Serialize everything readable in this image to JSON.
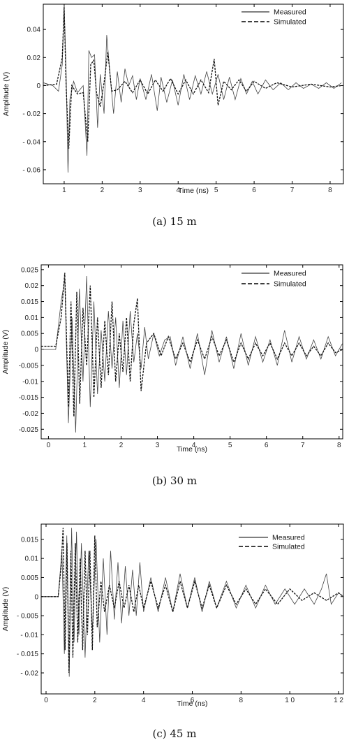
{
  "chart_data": [
    {
      "type": "line",
      "caption": "(a) 15 m",
      "xlabel": "Time (ns)",
      "ylabel": "Amplitude (V)",
      "xlim": [
        0.45,
        8.35
      ],
      "ylim": [
        -0.07,
        0.058
      ],
      "xticks": [
        1,
        2,
        3,
        4,
        5,
        6,
        7,
        8
      ],
      "xtick_labels": [
        "1",
        "2",
        "3",
        "4",
        "5",
        "6",
        "7",
        "8"
      ],
      "yticks": [
        -0.06,
        -0.04,
        -0.02,
        0,
        0.02,
        0.04
      ],
      "ytick_labels": [
        "- 0.06",
        "- 0.04",
        "- 0.02",
        "0",
        "0.02",
        "0.04"
      ],
      "legend_position": "top-right",
      "grid": false,
      "series": [
        {
          "name": "Measured",
          "style": "solid",
          "x": [
            0.45,
            0.7,
            0.85,
            0.95,
            1.0,
            1.05,
            1.1,
            1.15,
            1.25,
            1.35,
            1.5,
            1.6,
            1.65,
            1.72,
            1.8,
            1.88,
            1.95,
            2.05,
            2.12,
            2.2,
            2.3,
            2.4,
            2.5,
            2.6,
            2.7,
            2.8,
            2.9,
            3.0,
            3.15,
            3.3,
            3.45,
            3.55,
            3.7,
            3.85,
            4.0,
            4.15,
            4.3,
            4.45,
            4.6,
            4.75,
            4.9,
            5.05,
            5.2,
            5.35,
            5.5,
            5.65,
            5.8,
            5.95,
            6.1,
            6.3,
            6.5,
            6.7,
            6.9,
            7.1,
            7.3,
            7.5,
            7.7,
            7.9,
            8.1,
            8.3
          ],
          "y": [
            0.002,
            0.0,
            -0.004,
            0.015,
            0.057,
            0.01,
            -0.062,
            -0.01,
            0.003,
            -0.005,
            0.0,
            -0.05,
            0.025,
            0.02,
            0.022,
            -0.03,
            0.008,
            -0.02,
            0.036,
            0.01,
            -0.02,
            0.01,
            -0.012,
            0.012,
            0.0,
            0.007,
            -0.01,
            0.005,
            -0.01,
            0.008,
            -0.018,
            0.006,
            -0.012,
            0.004,
            -0.014,
            0.008,
            -0.01,
            0.007,
            -0.006,
            0.01,
            -0.006,
            0.008,
            -0.01,
            0.006,
            -0.01,
            0.005,
            -0.006,
            0.003,
            -0.006,
            0.004,
            -0.003,
            0.002,
            -0.003,
            0.002,
            -0.002,
            0.001,
            -0.002,
            0.002,
            -0.002,
            0.002
          ]
        },
        {
          "name": "Simulated",
          "style": "dashed",
          "x": [
            0.45,
            0.8,
            0.95,
            1.0,
            1.05,
            1.12,
            1.2,
            1.35,
            1.5,
            1.62,
            1.7,
            1.78,
            1.85,
            1.95,
            2.05,
            2.15,
            2.25,
            2.4,
            2.6,
            2.8,
            3.0,
            3.2,
            3.4,
            3.6,
            3.8,
            4.0,
            4.2,
            4.4,
            4.6,
            4.8,
            4.95,
            5.05,
            5.2,
            5.4,
            5.6,
            5.8,
            6.0,
            6.3,
            6.6,
            7.0,
            7.5,
            8.0,
            8.3
          ],
          "y": [
            0.0,
            0.001,
            0.02,
            0.056,
            0.0,
            -0.045,
            0.0,
            -0.006,
            -0.005,
            -0.04,
            0.015,
            0.018,
            -0.005,
            -0.015,
            0.002,
            0.024,
            -0.004,
            -0.003,
            0.003,
            -0.005,
            0.004,
            -0.006,
            0.004,
            -0.004,
            0.005,
            -0.006,
            0.004,
            -0.006,
            0.004,
            -0.005,
            0.019,
            -0.014,
            0.003,
            -0.003,
            0.004,
            -0.004,
            0.003,
            -0.002,
            0.002,
            -0.001,
            0.001,
            -0.001,
            0.0
          ]
        }
      ]
    },
    {
      "type": "line",
      "caption": "(b) 30 m",
      "xlabel": "Time (ns)",
      "ylabel": "Amplitude (V)",
      "xlim": [
        -0.2,
        8.1
      ],
      "ylim": [
        -0.028,
        0.0265
      ],
      "xticks": [
        0,
        1,
        2,
        3,
        4,
        5,
        6,
        7,
        8
      ],
      "xtick_labels": [
        "0",
        "1",
        "2",
        "3",
        "4",
        "5",
        "6",
        "7",
        "8"
      ],
      "yticks": [
        -0.025,
        -0.02,
        -0.015,
        -0.01,
        -0.005,
        0,
        0.005,
        0.01,
        0.015,
        0.02,
        0.025
      ],
      "ytick_labels": [
        "-0.025",
        "-0.02",
        "-0.015",
        "-0.01",
        "-0.005",
        "0",
        "0.005",
        "0.01",
        "0.015",
        "0.02",
        "0.025"
      ],
      "legend_position": "top-right",
      "grid": false,
      "series": [
        {
          "name": "Measured",
          "style": "solid",
          "x": [
            -0.2,
            0.2,
            0.35,
            0.45,
            0.55,
            0.65,
            0.75,
            0.85,
            0.95,
            1.05,
            1.15,
            1.25,
            1.35,
            1.45,
            1.55,
            1.65,
            1.75,
            1.85,
            1.95,
            2.05,
            2.15,
            2.25,
            2.35,
            2.45,
            2.55,
            2.65,
            2.75,
            2.9,
            3.05,
            3.2,
            3.35,
            3.5,
            3.7,
            3.9,
            4.1,
            4.3,
            4.5,
            4.7,
            4.9,
            5.1,
            5.3,
            5.5,
            5.7,
            5.9,
            6.1,
            6.3,
            6.5,
            6.7,
            6.9,
            7.1,
            7.3,
            7.5,
            7.7,
            7.9,
            8.1
          ],
          "y": [
            0.0,
            0.0,
            0.015,
            0.022,
            -0.023,
            0.01,
            -0.026,
            0.019,
            -0.01,
            0.023,
            -0.018,
            0.015,
            -0.014,
            0.006,
            -0.01,
            0.012,
            -0.006,
            0.01,
            -0.012,
            0.009,
            -0.008,
            0.012,
            -0.004,
            0.005,
            -0.006,
            0.007,
            -0.003,
            0.005,
            -0.002,
            0.003,
            0.004,
            -0.005,
            0.004,
            -0.006,
            0.005,
            -0.008,
            0.006,
            -0.004,
            0.004,
            -0.006,
            0.005,
            -0.005,
            0.004,
            -0.004,
            0.003,
            -0.005,
            0.006,
            -0.004,
            0.004,
            -0.003,
            0.003,
            -0.003,
            0.004,
            -0.002,
            0.002
          ]
        },
        {
          "name": "Simulated",
          "style": "dashed",
          "x": [
            -0.2,
            0.2,
            0.35,
            0.45,
            0.55,
            0.62,
            0.7,
            0.78,
            0.86,
            0.95,
            1.05,
            1.15,
            1.25,
            1.35,
            1.45,
            1.55,
            1.65,
            1.75,
            1.85,
            1.95,
            2.05,
            2.15,
            2.25,
            2.35,
            2.45,
            2.55,
            2.7,
            2.9,
            3.1,
            3.3,
            3.5,
            3.7,
            3.9,
            4.1,
            4.3,
            4.5,
            4.7,
            4.9,
            5.1,
            5.3,
            5.5,
            5.7,
            5.9,
            6.1,
            6.3,
            6.5,
            6.7,
            6.9,
            7.1,
            7.3,
            7.5,
            7.7,
            7.9,
            8.1
          ],
          "y": [
            0.001,
            0.001,
            0.01,
            0.024,
            -0.018,
            0.015,
            -0.021,
            0.018,
            -0.017,
            0.013,
            -0.005,
            0.02,
            -0.015,
            0.01,
            -0.012,
            0.009,
            -0.008,
            0.015,
            -0.01,
            0.005,
            -0.007,
            0.01,
            -0.01,
            0.008,
            0.016,
            -0.013,
            0.002,
            0.005,
            -0.002,
            0.004,
            -0.003,
            0.002,
            -0.004,
            0.003,
            -0.003,
            0.004,
            -0.002,
            0.003,
            -0.004,
            0.002,
            -0.003,
            0.002,
            -0.002,
            0.002,
            -0.003,
            0.002,
            -0.002,
            0.002,
            -0.002,
            0.001,
            -0.002,
            0.002,
            -0.001,
            0.0
          ]
        }
      ]
    },
    {
      "type": "line",
      "caption": "(c) 45 m",
      "xlabel": "Time (ns)",
      "ylabel": "Amplitude (V)",
      "xlim": [
        -0.2,
        12.2
      ],
      "ylim": [
        -0.0255,
        0.019
      ],
      "xticks": [
        0,
        2,
        4,
        6,
        8,
        10,
        12
      ],
      "xtick_labels": [
        "0",
        "2",
        "4",
        "6",
        "8",
        "1 0",
        "1 2"
      ],
      "yticks": [
        -0.02,
        -0.015,
        -0.01,
        -0.005,
        0,
        0.005,
        0.01,
        0.015
      ],
      "ytick_labels": [
        "- 0.02",
        "- 0.015",
        "- 0.01",
        "- 0.005",
        "0",
        "0.005",
        "0.01",
        "0.015"
      ],
      "legend_position": "top-right",
      "grid": false,
      "series": [
        {
          "name": "Measured",
          "style": "solid",
          "x": [
            -0.2,
            0.5,
            0.65,
            0.75,
            0.85,
            0.95,
            1.05,
            1.15,
            1.25,
            1.35,
            1.45,
            1.6,
            1.75,
            1.9,
            2.05,
            2.2,
            2.35,
            2.5,
            2.65,
            2.8,
            2.95,
            3.1,
            3.25,
            3.4,
            3.55,
            3.7,
            3.85,
            4.0,
            4.3,
            4.6,
            4.9,
            5.2,
            5.5,
            5.8,
            6.1,
            6.4,
            6.7,
            7.0,
            7.4,
            7.8,
            8.2,
            8.6,
            9.0,
            9.4,
            9.8,
            10.2,
            10.6,
            11.0,
            11.3,
            11.5,
            11.7,
            12.0,
            12.2
          ],
          "y": [
            0.0,
            0.0,
            0.012,
            -0.015,
            0.016,
            -0.021,
            0.018,
            -0.012,
            0.017,
            -0.01,
            0.014,
            -0.016,
            0.012,
            -0.009,
            0.015,
            -0.012,
            0.01,
            -0.01,
            0.012,
            -0.006,
            0.009,
            -0.007,
            0.008,
            -0.005,
            0.007,
            -0.005,
            0.009,
            -0.004,
            0.005,
            -0.004,
            0.005,
            -0.004,
            0.006,
            -0.003,
            0.005,
            -0.004,
            0.004,
            -0.003,
            0.004,
            -0.003,
            0.003,
            -0.003,
            0.003,
            -0.002,
            0.002,
            -0.002,
            0.002,
            -0.002,
            0.002,
            0.006,
            -0.002,
            0.001,
            0.0
          ]
        },
        {
          "name": "Simulated",
          "style": "dashed",
          "x": [
            -0.2,
            0.5,
            0.62,
            0.7,
            0.78,
            0.86,
            0.94,
            1.02,
            1.1,
            1.2,
            1.3,
            1.4,
            1.5,
            1.6,
            1.7,
            1.8,
            1.9,
            2.0,
            2.1,
            2.25,
            2.4,
            2.6,
            2.8,
            3.0,
            3.2,
            3.4,
            3.6,
            3.8,
            4.0,
            4.3,
            4.6,
            4.9,
            5.2,
            5.5,
            5.8,
            6.1,
            6.4,
            6.7,
            7.0,
            7.4,
            7.8,
            8.2,
            8.6,
            9.0,
            9.5,
            10.0,
            10.5,
            11.0,
            11.5,
            12.0,
            12.2
          ],
          "y": [
            0.0,
            0.0,
            0.008,
            0.018,
            -0.014,
            0.014,
            -0.02,
            0.012,
            -0.016,
            0.014,
            -0.012,
            0.01,
            -0.014,
            0.012,
            -0.01,
            0.012,
            -0.014,
            0.016,
            -0.008,
            0.004,
            -0.004,
            0.003,
            -0.003,
            0.004,
            -0.003,
            0.003,
            -0.004,
            0.003,
            -0.003,
            0.004,
            -0.003,
            0.003,
            -0.004,
            0.004,
            -0.003,
            0.004,
            -0.003,
            0.003,
            -0.003,
            0.003,
            -0.002,
            0.002,
            -0.002,
            0.002,
            -0.002,
            0.002,
            -0.001,
            0.001,
            -0.001,
            0.001,
            0.0
          ]
        }
      ]
    }
  ]
}
